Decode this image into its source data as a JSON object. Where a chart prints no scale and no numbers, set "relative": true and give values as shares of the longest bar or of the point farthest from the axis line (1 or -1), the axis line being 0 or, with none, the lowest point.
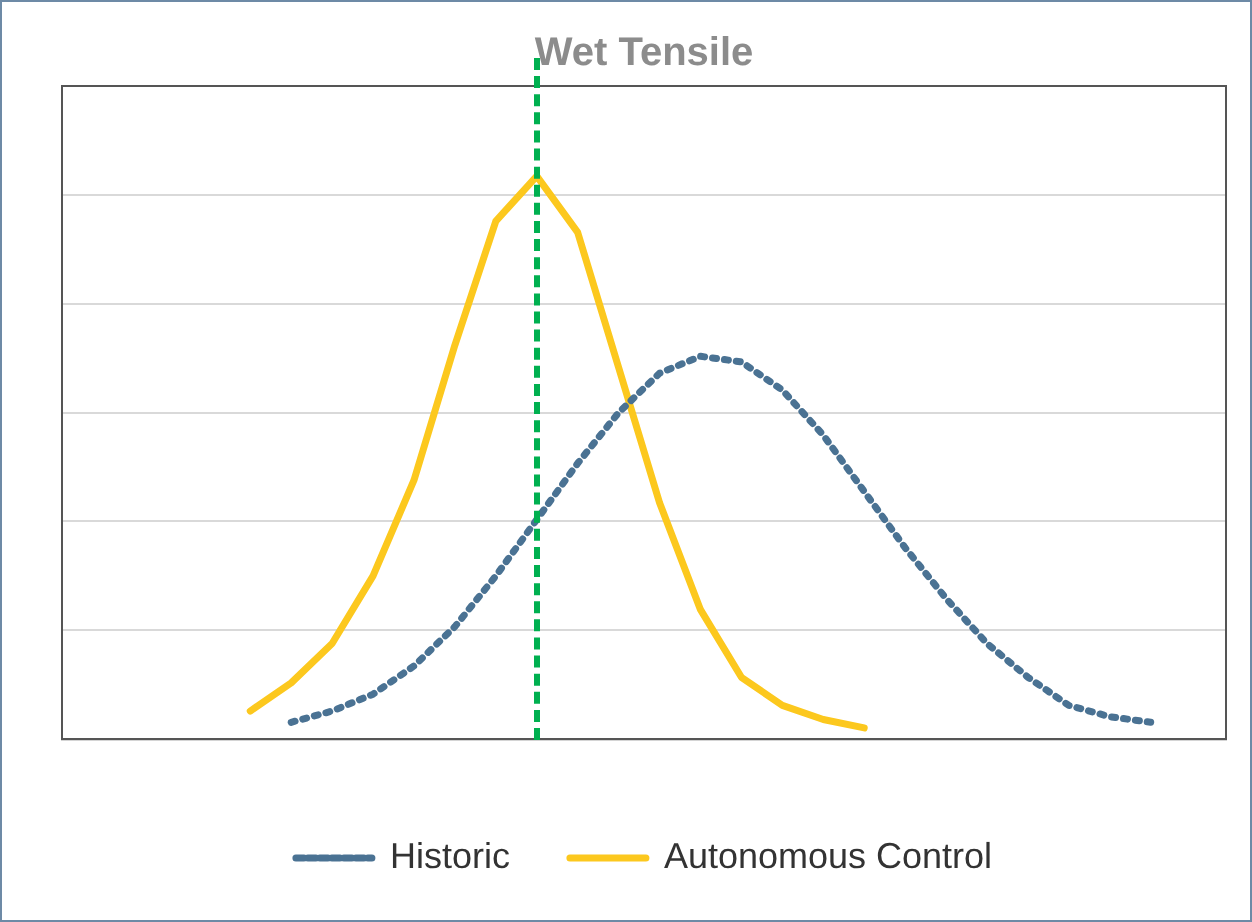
{
  "chart_data": {
    "type": "line",
    "title": "Wet Tensile",
    "relative": true,
    "grid": "y",
    "legend": "bottom",
    "marker": "none",
    "categories": [
      null,
      null,
      null,
      null,
      null,
      null,
      null,
      null,
      null,
      null,
      null,
      null,
      null,
      null,
      null,
      null,
      null,
      null,
      null,
      null,
      null,
      null,
      null
    ],
    "series": [
      {
        "name": "Historic",
        "color": "#4a7293",
        "line_style": "dotted",
        "values": [
          null,
          0.03,
          0.05,
          0.08,
          0.13,
          0.2,
          0.29,
          0.39,
          0.49,
          0.58,
          0.65,
          0.68,
          0.67,
          0.62,
          0.54,
          0.44,
          0.34,
          0.25,
          0.17,
          0.11,
          0.06,
          0.04,
          0.03
        ]
      },
      {
        "name": "Autonomous Control",
        "color": "#fcc81e",
        "line_style": "solid",
        "values": [
          0.05,
          0.1,
          0.17,
          0.29,
          0.46,
          0.7,
          0.92,
          1,
          0.9,
          0.66,
          0.42,
          0.23,
          0.11,
          0.06,
          0.035,
          0.02,
          null,
          null,
          null,
          null,
          null,
          null,
          null
        ]
      }
    ]
  }
}
